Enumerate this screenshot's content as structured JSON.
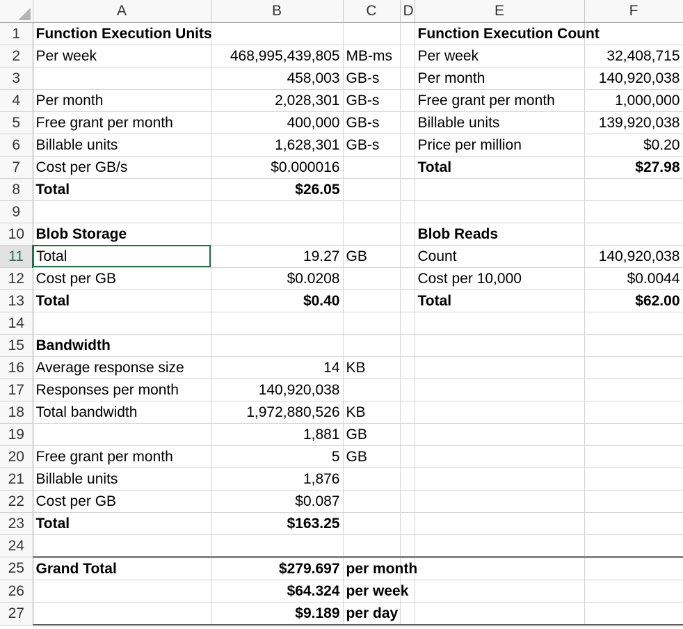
{
  "columns": [
    "A",
    "B",
    "C",
    "D",
    "E",
    "F"
  ],
  "rows": [
    {
      "n": "1",
      "a": "Function Execution Units",
      "a_b": true,
      "b": "",
      "c": "",
      "e": "Function Execution Count",
      "e_b": true,
      "f": ""
    },
    {
      "n": "2",
      "a": "Per week",
      "b": "468,995,439,805",
      "c": "MB-ms",
      "e": "Per week",
      "f": "32,408,715"
    },
    {
      "n": "3",
      "a": "",
      "b": "458,003",
      "c": "GB-s",
      "e": "Per month",
      "f": "140,920,038"
    },
    {
      "n": "4",
      "a": "Per month",
      "b": "2,028,301",
      "c": "GB-s",
      "e": "Free grant per month",
      "f": "1,000,000"
    },
    {
      "n": "5",
      "a": "Free grant per month",
      "b": "400,000",
      "c": "GB-s",
      "e": "Billable units",
      "f": "139,920,038"
    },
    {
      "n": "6",
      "a": "Billable units",
      "b": "1,628,301",
      "c": "GB-s",
      "e": "Price per million",
      "f": "$0.20"
    },
    {
      "n": "7",
      "a": "Cost per GB/s",
      "b": "$0.000016",
      "c": "",
      "e": "Total",
      "e_b": true,
      "f": "$27.98",
      "f_b": true
    },
    {
      "n": "8",
      "a": "Total",
      "a_b": true,
      "b": "$26.05",
      "b_b": true,
      "c": "",
      "e": "",
      "f": ""
    },
    {
      "n": "9",
      "a": "",
      "b": "",
      "c": "",
      "e": "",
      "f": ""
    },
    {
      "n": "10",
      "a": "Blob Storage",
      "a_b": true,
      "b": "",
      "c": "",
      "e": "Blob Reads",
      "e_b": true,
      "f": ""
    },
    {
      "n": "11",
      "a": "Total",
      "b": "19.27",
      "c": "GB",
      "e": "Count",
      "f": "140,920,038",
      "selected": true
    },
    {
      "n": "12",
      "a": "Cost per GB",
      "b": "$0.0208",
      "c": "",
      "e": "Cost per 10,000",
      "f": "$0.0044"
    },
    {
      "n": "13",
      "a": "Total",
      "a_b": true,
      "b": "$0.40",
      "b_b": true,
      "c": "",
      "e": "Total",
      "e_b": true,
      "f": "$62.00",
      "f_b": true
    },
    {
      "n": "14",
      "a": "",
      "b": "",
      "c": "",
      "e": "",
      "f": ""
    },
    {
      "n": "15",
      "a": "Bandwidth",
      "a_b": true,
      "b": "",
      "c": "",
      "e": "",
      "f": ""
    },
    {
      "n": "16",
      "a": "Average response size",
      "b": "14",
      "c": "KB",
      "e": "",
      "f": ""
    },
    {
      "n": "17",
      "a": "Responses per month",
      "b": "140,920,038",
      "c": "",
      "e": "",
      "f": ""
    },
    {
      "n": "18",
      "a": "Total bandwidth",
      "b": "1,972,880,526",
      "c": "KB",
      "e": "",
      "f": ""
    },
    {
      "n": "19",
      "a": "",
      "b": "1,881",
      "c": "GB",
      "e": "",
      "f": ""
    },
    {
      "n": "20",
      "a": "Free grant per month",
      "b": "5",
      "c": "GB",
      "e": "",
      "f": ""
    },
    {
      "n": "21",
      "a": "Billable units",
      "b": "1,876",
      "c": "",
      "e": "",
      "f": ""
    },
    {
      "n": "22",
      "a": "Cost per GB",
      "b": "$0.087",
      "c": "",
      "e": "",
      "f": ""
    },
    {
      "n": "23",
      "a": "Total",
      "a_b": true,
      "b": "$163.25",
      "b_b": true,
      "c": "",
      "e": "",
      "f": ""
    },
    {
      "n": "24",
      "a": "",
      "b": "",
      "c": "",
      "e": "",
      "f": ""
    },
    {
      "n": "25",
      "a": "Grand Total",
      "a_b": true,
      "b": "$279.697",
      "b_b": true,
      "c": "per month",
      "c_b": true,
      "e": "",
      "f": ""
    },
    {
      "n": "26",
      "a": "",
      "b": "$64.324",
      "b_b": true,
      "c": "per week",
      "c_b": true,
      "e": "",
      "f": ""
    },
    {
      "n": "27",
      "a": "",
      "b": "$9.189",
      "b_b": true,
      "c": "per day",
      "c_b": true,
      "e": "",
      "f": ""
    }
  ]
}
